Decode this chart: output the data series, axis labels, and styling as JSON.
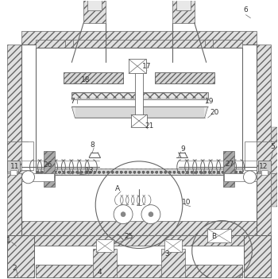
{
  "fig_width": 3.5,
  "fig_height": 3.51,
  "dpi": 100,
  "bg_color": "#ffffff",
  "lc": "#666666",
  "lc2": "#999999",
  "hc": "#bbbbbb"
}
